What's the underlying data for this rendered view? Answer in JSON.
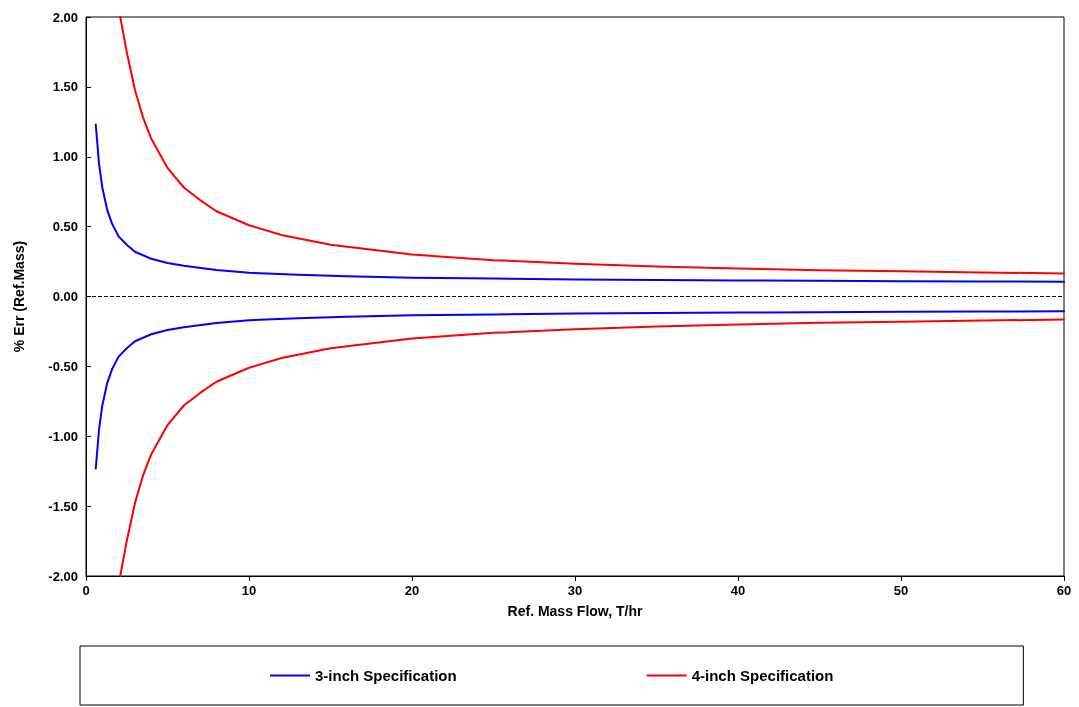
{
  "chart_data": {
    "type": "line",
    "xlabel": "Ref. Mass Flow, T/hr",
    "ylabel": "% Err (Ref.Mass)",
    "xlim": [
      0,
      60
    ],
    "xticks": [
      0,
      10,
      20,
      30,
      40,
      50,
      60
    ],
    "ylim": [
      -2,
      2
    ],
    "yticks": [
      {
        "value": -2,
        "label": "-2.00"
      },
      {
        "value": -1.5,
        "label": "-1.50"
      },
      {
        "value": -1,
        "label": "-1.00"
      },
      {
        "value": -0.5,
        "label": "-0.50"
      },
      {
        "value": 0,
        "label": "0.00"
      },
      {
        "value": 0.5,
        "label": "0.50"
      },
      {
        "value": 1,
        "label": "1.00"
      },
      {
        "value": 1.5,
        "label": "1.50"
      },
      {
        "value": 2,
        "label": "2.00"
      }
    ],
    "grid": false,
    "legend": "bottom",
    "marker": "none",
    "line_style": "solid",
    "ref_lines": [
      {
        "axis": "y",
        "value": 0,
        "label": null,
        "color": "#000000",
        "line_style": "dashed"
      }
    ],
    "series": [
      {
        "name": "3-inch Specification",
        "color": "#0000ff",
        "x": [
          0.6,
          0.8,
          1,
          1.3,
          1.6,
          2,
          2.5,
          3,
          4,
          5,
          6,
          8,
          10,
          13,
          16,
          20,
          25,
          30,
          35,
          40,
          45,
          50,
          55,
          60
        ],
        "values": [
          1.23,
          0.95,
          0.78,
          0.62,
          0.52,
          0.43,
          0.37,
          0.32,
          0.27,
          0.24,
          0.22,
          0.19,
          0.17,
          0.155,
          0.145,
          0.135,
          0.128,
          0.122,
          0.118,
          0.115,
          0.112,
          0.11,
          0.108,
          0.105
        ]
      },
      {
        "color": "#0000ff",
        "x": [
          0.6,
          0.8,
          1,
          1.3,
          1.6,
          2,
          2.5,
          3,
          4,
          5,
          6,
          8,
          10,
          13,
          16,
          20,
          25,
          30,
          35,
          40,
          45,
          50,
          55,
          60
        ],
        "values": [
          -1.23,
          -0.95,
          -0.78,
          -0.62,
          -0.52,
          -0.43,
          -0.37,
          -0.32,
          -0.27,
          -0.24,
          -0.22,
          -0.19,
          -0.17,
          -0.155,
          -0.145,
          -0.135,
          -0.128,
          -0.122,
          -0.118,
          -0.115,
          -0.112,
          -0.11,
          -0.108,
          -0.105
        ]
      },
      {
        "name": "4-inch Specification",
        "color": "#ff0000",
        "x": [
          2.1,
          2.5,
          3,
          3.5,
          4,
          5,
          6,
          7,
          8,
          10,
          12,
          15,
          20,
          25,
          30,
          35,
          40,
          45,
          50,
          55,
          60
        ],
        "values": [
          2.0,
          1.75,
          1.48,
          1.28,
          1.13,
          0.92,
          0.78,
          0.69,
          0.61,
          0.51,
          0.44,
          0.37,
          0.3,
          0.26,
          0.235,
          0.215,
          0.2,
          0.188,
          0.18,
          0.172,
          0.165
        ]
      },
      {
        "color": "#ff0000",
        "x": [
          2.1,
          2.5,
          3,
          3.5,
          4,
          5,
          6,
          7,
          8,
          10,
          12,
          15,
          20,
          25,
          30,
          35,
          40,
          45,
          50,
          55,
          60
        ],
        "values": [
          -2.0,
          -1.75,
          -1.48,
          -1.28,
          -1.13,
          -0.92,
          -0.78,
          -0.69,
          -0.61,
          -0.51,
          -0.44,
          -0.37,
          -0.3,
          -0.26,
          -0.235,
          -0.215,
          -0.2,
          -0.188,
          -0.18,
          -0.172,
          -0.165
        ]
      }
    ]
  }
}
